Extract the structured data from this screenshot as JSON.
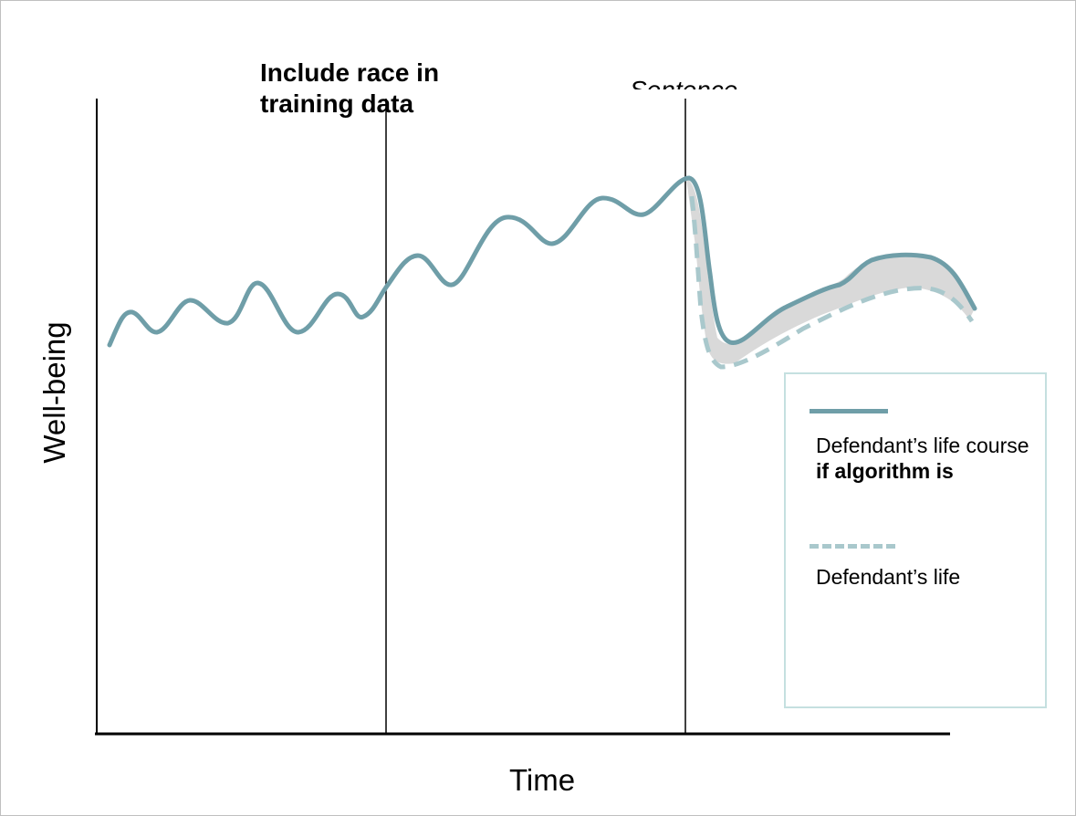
{
  "annotations": {
    "race_label": "Include race in training data",
    "sentence_label": "Sentence"
  },
  "axes": {
    "ylabel": "Well-being",
    "xlabel": "Time"
  },
  "legend": {
    "item1_prefix": "Defendant’s life course ",
    "item1_bold": "if algorithm is",
    "item2": "Defendant’s life"
  },
  "colors": {
    "solid_line": "#6f9ea8",
    "dashed_line": "#a9c8cc",
    "shaded_gap": "#d9d9d9",
    "legend_border": "#c5e0e0"
  }
}
